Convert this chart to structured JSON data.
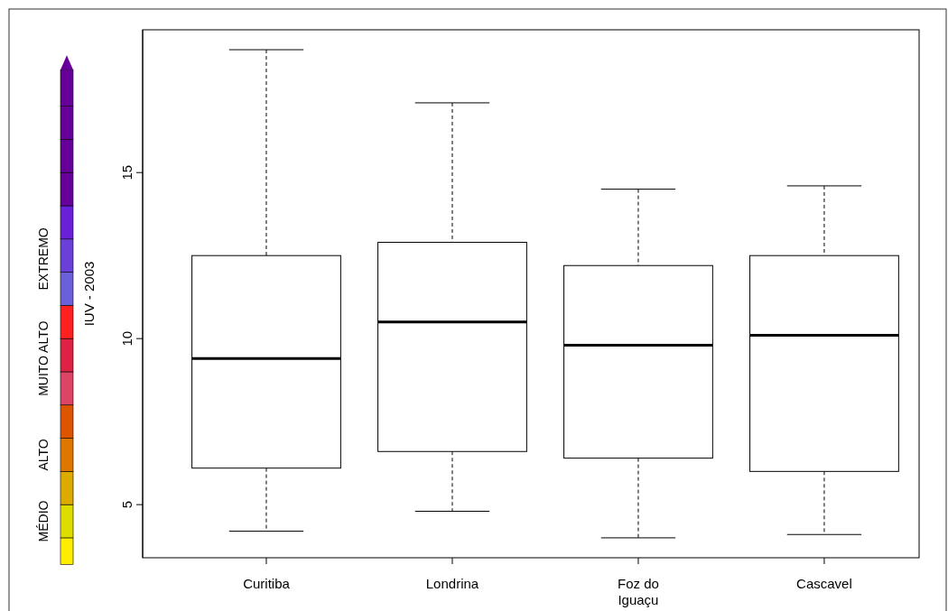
{
  "chart_data": {
    "type": "box",
    "ylabel": "IUV - 2003",
    "categories": [
      "Curitiba",
      "Londrina",
      "Foz do Iguaçu",
      "Cascavel"
    ],
    "boxes": [
      {
        "low": 4.2,
        "q1": 6.1,
        "median": 9.4,
        "q3": 12.5,
        "high": 18.7
      },
      {
        "low": 4.8,
        "q1": 6.6,
        "median": 10.5,
        "q3": 12.9,
        "high": 17.1
      },
      {
        "low": 4.0,
        "q1": 6.4,
        "median": 9.8,
        "q3": 12.2,
        "high": 14.5
      },
      {
        "low": 4.1,
        "q1": 6.0,
        "median": 10.1,
        "q3": 12.5,
        "high": 14.6
      }
    ],
    "ylim": [
      3.4,
      19.3
    ],
    "yticks": [
      5,
      10,
      15
    ],
    "grid": false,
    "annotations": [
      "MÉDIO",
      "ALTO",
      "MUITO ALTO",
      "EXTREMO"
    ]
  }
}
